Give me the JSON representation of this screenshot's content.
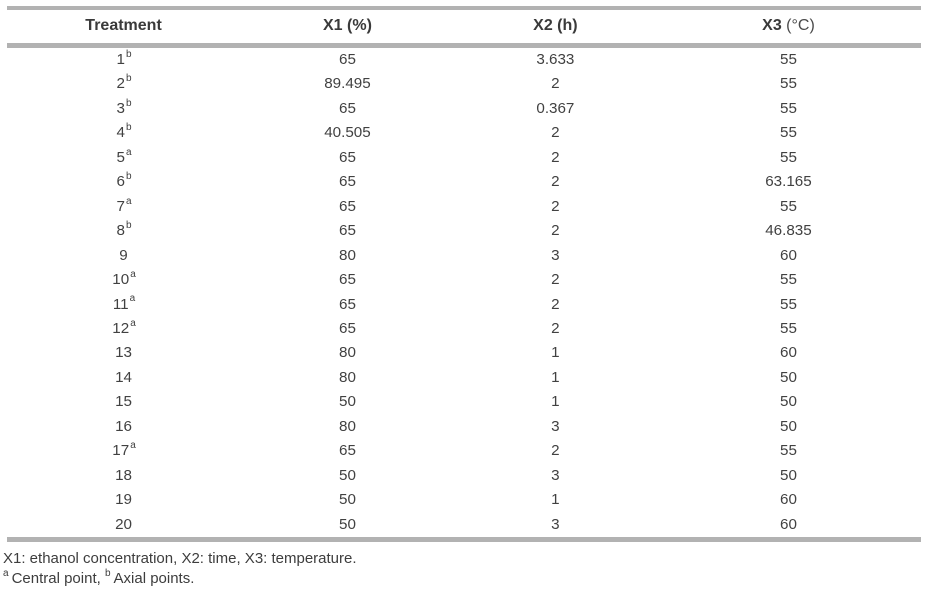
{
  "table": {
    "columns": [
      {
        "label": "Treatment",
        "unit": ""
      },
      {
        "label": "X1",
        "unit": "(%)"
      },
      {
        "label": "X2",
        "unit": "(h)"
      },
      {
        "label": "X3",
        "unit": "(°C)"
      }
    ],
    "rows": [
      {
        "treatment": "1",
        "sup": "b",
        "x1": "65",
        "x2": "3.633",
        "x3": "55"
      },
      {
        "treatment": "2",
        "sup": "b",
        "x1": "89.495",
        "x2": "2",
        "x3": "55"
      },
      {
        "treatment": "3",
        "sup": "b",
        "x1": "65",
        "x2": "0.367",
        "x3": "55"
      },
      {
        "treatment": "4",
        "sup": "b",
        "x1": "40.505",
        "x2": "2",
        "x3": "55"
      },
      {
        "treatment": "5",
        "sup": "a",
        "x1": "65",
        "x2": "2",
        "x3": "55"
      },
      {
        "treatment": "6",
        "sup": "b",
        "x1": "65",
        "x2": "2",
        "x3": "63.165"
      },
      {
        "treatment": "7",
        "sup": "a",
        "x1": "65",
        "x2": "2",
        "x3": "55"
      },
      {
        "treatment": "8",
        "sup": "b",
        "x1": "65",
        "x2": "2",
        "x3": "46.835"
      },
      {
        "treatment": "9",
        "sup": "",
        "x1": "80",
        "x2": "3",
        "x3": "60"
      },
      {
        "treatment": "10",
        "sup": "a",
        "x1": "65",
        "x2": "2",
        "x3": "55"
      },
      {
        "treatment": "11",
        "sup": "a",
        "x1": "65",
        "x2": "2",
        "x3": "55"
      },
      {
        "treatment": "12",
        "sup": "a",
        "x1": "65",
        "x2": "2",
        "x3": "55"
      },
      {
        "treatment": "13",
        "sup": "",
        "x1": "80",
        "x2": "1",
        "x3": "60"
      },
      {
        "treatment": "14",
        "sup": "",
        "x1": "80",
        "x2": "1",
        "x3": "50"
      },
      {
        "treatment": "15",
        "sup": "",
        "x1": "50",
        "x2": "1",
        "x3": "50"
      },
      {
        "treatment": "16",
        "sup": "",
        "x1": "80",
        "x2": "3",
        "x3": "50"
      },
      {
        "treatment": "17",
        "sup": "a",
        "x1": "65",
        "x2": "2",
        "x3": "55"
      },
      {
        "treatment": "18",
        "sup": "",
        "x1": "50",
        "x2": "3",
        "x3": "50"
      },
      {
        "treatment": "19",
        "sup": "",
        "x1": "50",
        "x2": "1",
        "x3": "60"
      },
      {
        "treatment": "20",
        "sup": "",
        "x1": "50",
        "x2": "3",
        "x3": "60"
      }
    ]
  },
  "footnotes": {
    "line1": "X1: ethanol concentration, X2: time, X3: temperature.",
    "line2": [
      {
        "sup": "a",
        "text": "Central point, "
      },
      {
        "sup": "b",
        "text": "Axial points."
      }
    ]
  }
}
